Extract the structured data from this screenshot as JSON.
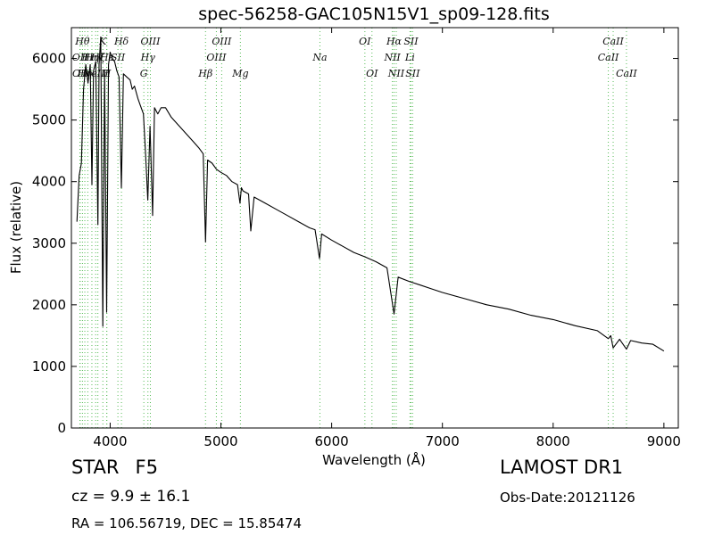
{
  "chart_data": {
    "type": "line",
    "title": "spec-56258-GAC105N15V1_sp09-128.fits",
    "xlabel": "Wavelength (Å)",
    "ylabel": "Flux (relative)",
    "xlim": [
      3650,
      9130
    ],
    "ylim": [
      0,
      6500
    ],
    "xticks": [
      4000,
      5000,
      6000,
      7000,
      8000,
      9000
    ],
    "yticks": [
      0,
      1000,
      2000,
      3000,
      4000,
      5000,
      6000
    ],
    "grid": false,
    "series": [
      {
        "line_color": "#000000",
        "points": [
          [
            3700,
            3350
          ],
          [
            3720,
            4100
          ],
          [
            3740,
            4300
          ],
          [
            3760,
            5500
          ],
          [
            3780,
            5900
          ],
          [
            3800,
            5600
          ],
          [
            3820,
            5900
          ],
          [
            3835,
            3950
          ],
          [
            3850,
            5800
          ],
          [
            3870,
            5950
          ],
          [
            3889,
            3300
          ],
          [
            3900,
            5900
          ],
          [
            3915,
            6350
          ],
          [
            3934,
            1650
          ],
          [
            3950,
            5800
          ],
          [
            3968,
            1880
          ],
          [
            3985,
            5900
          ],
          [
            4000,
            6100
          ],
          [
            4020,
            6000
          ],
          [
            4040,
            5950
          ],
          [
            4060,
            5800
          ],
          [
            4080,
            5700
          ],
          [
            4101,
            3900
          ],
          [
            4120,
            5750
          ],
          [
            4150,
            5700
          ],
          [
            4180,
            5650
          ],
          [
            4200,
            5500
          ],
          [
            4220,
            5550
          ],
          [
            4250,
            5350
          ],
          [
            4270,
            5250
          ],
          [
            4300,
            5100
          ],
          [
            4320,
            4450
          ],
          [
            4340,
            3700
          ],
          [
            4360,
            4900
          ],
          [
            4383,
            3450
          ],
          [
            4400,
            5200
          ],
          [
            4430,
            5100
          ],
          [
            4460,
            5200
          ],
          [
            4500,
            5200
          ],
          [
            4550,
            5050
          ],
          [
            4600,
            4950
          ],
          [
            4650,
            4850
          ],
          [
            4700,
            4750
          ],
          [
            4750,
            4650
          ],
          [
            4800,
            4550
          ],
          [
            4840,
            4450
          ],
          [
            4861,
            3020
          ],
          [
            4880,
            4350
          ],
          [
            4920,
            4300
          ],
          [
            4960,
            4200
          ],
          [
            5000,
            4150
          ],
          [
            5050,
            4100
          ],
          [
            5100,
            4000
          ],
          [
            5150,
            3950
          ],
          [
            5172,
            3650
          ],
          [
            5185,
            3900
          ],
          [
            5200,
            3850
          ],
          [
            5250,
            3800
          ],
          [
            5270,
            3200
          ],
          [
            5300,
            3750
          ],
          [
            5400,
            3650
          ],
          [
            5500,
            3550
          ],
          [
            5600,
            3450
          ],
          [
            5700,
            3350
          ],
          [
            5800,
            3250
          ],
          [
            5850,
            3220
          ],
          [
            5890,
            2750
          ],
          [
            5910,
            3150
          ],
          [
            6000,
            3050
          ],
          [
            6100,
            2950
          ],
          [
            6200,
            2850
          ],
          [
            6300,
            2780
          ],
          [
            6400,
            2700
          ],
          [
            6500,
            2600
          ],
          [
            6563,
            1850
          ],
          [
            6600,
            2450
          ],
          [
            6700,
            2380
          ],
          [
            6800,
            2320
          ],
          [
            6900,
            2260
          ],
          [
            7000,
            2200
          ],
          [
            7200,
            2100
          ],
          [
            7400,
            2000
          ],
          [
            7600,
            1930
          ],
          [
            7800,
            1830
          ],
          [
            8000,
            1760
          ],
          [
            8200,
            1660
          ],
          [
            8400,
            1580
          ],
          [
            8498,
            1450
          ],
          [
            8520,
            1500
          ],
          [
            8542,
            1300
          ],
          [
            8600,
            1440
          ],
          [
            8662,
            1280
          ],
          [
            8700,
            1420
          ],
          [
            8800,
            1380
          ],
          [
            8900,
            1360
          ],
          [
            9000,
            1250
          ]
        ]
      }
    ],
    "spectral_lines": [
      {
        "wl": 3727,
        "label": "OII",
        "row": 2
      },
      {
        "wl": 3729,
        "label": "OII",
        "row": 3
      },
      {
        "wl": 3750,
        "label": "Hθ",
        "row": 1
      },
      {
        "wl": 3771,
        "label": "Hη",
        "row": 3
      },
      {
        "wl": 3798,
        "label": "Hι",
        "row": 2
      },
      {
        "wl": 3835,
        "label": "Hη",
        "row": 2
      },
      {
        "wl": 3869,
        "label": "NeIII",
        "row": 3
      },
      {
        "wl": 3889,
        "label": "Hζ",
        "row": 2
      },
      {
        "wl": 3934,
        "label": "K",
        "row": 1
      },
      {
        "wl": 3969,
        "label": "H",
        "row": 3
      },
      {
        "wl": 3970,
        "label": "Hε",
        "row": 2
      },
      {
        "wl": 4070,
        "label": "SII",
        "row": 2
      },
      {
        "wl": 4102,
        "label": "Hδ",
        "row": 1
      },
      {
        "wl": 4304,
        "label": "G",
        "row": 3
      },
      {
        "wl": 4341,
        "label": "Hγ",
        "row": 2
      },
      {
        "wl": 4363,
        "label": "OIII",
        "row": 1
      },
      {
        "wl": 4861,
        "label": "Hβ",
        "row": 3
      },
      {
        "wl": 4959,
        "label": "OIII",
        "row": 2
      },
      {
        "wl": 5007,
        "label": "OIII",
        "row": 1
      },
      {
        "wl": 5176,
        "label": "Mg",
        "row": 3
      },
      {
        "wl": 5894,
        "label": "Na",
        "row": 2
      },
      {
        "wl": 6300,
        "label": "OI",
        "row": 1
      },
      {
        "wl": 6364,
        "label": "OI",
        "row": 3
      },
      {
        "wl": 6548,
        "label": "NII",
        "row": 2
      },
      {
        "wl": 6563,
        "label": "Hα",
        "row": 1
      },
      {
        "wl": 6583,
        "label": "NII",
        "row": 3
      },
      {
        "wl": 6707,
        "label": "Li",
        "row": 2
      },
      {
        "wl": 6716,
        "label": "SII",
        "row": 1
      },
      {
        "wl": 6731,
        "label": "SII",
        "row": 3
      },
      {
        "wl": 8498,
        "label": "CaII",
        "row": 2
      },
      {
        "wl": 8542,
        "label": "CaII",
        "row": 1
      },
      {
        "wl": 8662,
        "label": "CaII",
        "row": 3
      }
    ],
    "line_marker_color": "#55bb55"
  },
  "footer": {
    "object_class": "STAR",
    "subclass": "F5",
    "release": "LAMOST DR1",
    "redshift": "cz = 9.9 ± 16.1",
    "obs_date": "Obs-Date:20121126",
    "coords": "RA = 106.56719, DEC = 15.85474"
  }
}
